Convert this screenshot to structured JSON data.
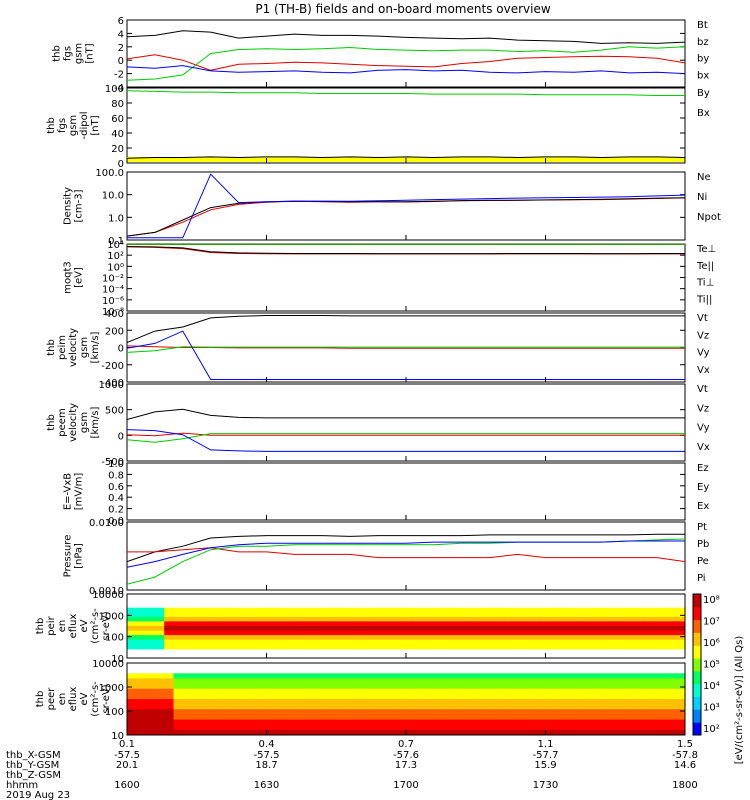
{
  "header": {
    "title": "P1 (TH-B) fields and on-board moments overview"
  },
  "palette": {
    "black": "#000000",
    "red": "#e00000",
    "green": "#00cc00",
    "blue": "#0000ff",
    "yellow": "#ffff00",
    "colorbar": [
      "#0000ff",
      "#0080ff",
      "#00d0ff",
      "#00ffd0",
      "#00ff60",
      "#80ff00",
      "#ffff00",
      "#ffc000",
      "#ff6000",
      "#ff0000",
      "#c00000"
    ]
  },
  "chart_data": [
    {
      "type": "line",
      "ylabel": [
        "thb",
        "fgs",
        "gsm",
        "[nT]"
      ],
      "yticks": [
        "6",
        "4",
        "2",
        "0",
        "-2",
        "-4"
      ],
      "ylim": [
        -4,
        6
      ],
      "series": [
        {
          "name": "Bt",
          "color": "black",
          "values": [
            3.5,
            3.7,
            4.4,
            4.2,
            3.3,
            3.6,
            3.9,
            3.7,
            3.7,
            3.6,
            3.4,
            3.3,
            3.2,
            3.3,
            3.0,
            2.9,
            2.8,
            2.5,
            2.6,
            2.5,
            2.7
          ]
        },
        {
          "name": "bz",
          "color": "red",
          "values": [
            0.2,
            0.8,
            0.0,
            -1.5,
            -0.6,
            -0.5,
            -0.3,
            -0.4,
            -0.6,
            -0.8,
            -0.9,
            -1.0,
            -0.5,
            -0.2,
            0.3,
            0.4,
            0.5,
            0.6,
            0.5,
            0.3,
            -0.4
          ]
        },
        {
          "name": "by",
          "color": "green",
          "values": [
            -3.0,
            -2.8,
            -2.2,
            1.0,
            1.6,
            1.7,
            1.6,
            1.7,
            1.9,
            1.6,
            1.5,
            1.4,
            1.5,
            1.5,
            1.3,
            1.4,
            1.2,
            1.5,
            2.0,
            1.8,
            2.0
          ]
        },
        {
          "name": "bx",
          "color": "blue",
          "values": [
            -1.0,
            -1.2,
            -0.8,
            -1.6,
            -1.8,
            -1.7,
            -1.6,
            -1.8,
            -1.9,
            -1.5,
            -1.4,
            -1.6,
            -1.5,
            -1.8,
            -1.9,
            -1.7,
            -1.8,
            -1.6,
            -1.9,
            -1.8,
            -2.0
          ]
        }
      ]
    },
    {
      "type": "line",
      "ylabel": [
        "thb",
        "fgs",
        "gsm",
        "-dipol",
        "[nT]"
      ],
      "yticks": [
        "100",
        "80",
        "60",
        "40",
        "20",
        "0"
      ],
      "ylim": [
        -10,
        100
      ],
      "series": [
        {
          "name": "By",
          "color": "green",
          "values": [
            96,
            95,
            94,
            94,
            93,
            93,
            93,
            92,
            92,
            92,
            92,
            91,
            91,
            91,
            91,
            90,
            90,
            90,
            90,
            89,
            89
          ]
        },
        {
          "name": "Bx",
          "color": "black",
          "values": [
            -3,
            -2,
            -2,
            -1,
            -2,
            -1,
            -1,
            -2,
            -1,
            -2,
            -1,
            -2,
            -1,
            -1,
            -2,
            -1,
            -1,
            -2,
            -1,
            -1,
            -2
          ]
        }
      ],
      "band": "yellow"
    },
    {
      "type": "line",
      "log": true,
      "ylabel": [
        "Density",
        "[cm-3]"
      ],
      "yticks": [
        "100.0",
        "10.0",
        "1.0",
        "0.1"
      ],
      "ylim": [
        0.03,
        200
      ],
      "series": [
        {
          "name": "Ne",
          "color": "red",
          "values": [
            0.05,
            0.08,
            0.3,
            1.5,
            3.0,
            4.0,
            4.5,
            4.3,
            4.0,
            4.2,
            4.1,
            4.4,
            4.8,
            5.0,
            5.1,
            5.3,
            5.5,
            5.6,
            6.0,
            6.5,
            7.0
          ]
        },
        {
          "name": "Ni",
          "color": "black",
          "values": [
            0.05,
            0.08,
            0.4,
            2.0,
            3.5,
            4.2,
            4.5,
            4.4,
            4.2,
            4.3,
            4.3,
            4.5,
            4.9,
            5.1,
            5.2,
            5.4,
            5.6,
            5.8,
            6.2,
            6.8,
            7.2
          ]
        },
        {
          "name": "Npot",
          "color": "blue",
          "values": [
            0.04,
            0.04,
            0.04,
            150,
            3.8,
            4.3,
            4.6,
            4.6,
            4.5,
            4.8,
            5.2,
            5.6,
            6.0,
            6.4,
            6.8,
            7.1,
            7.4,
            7.8,
            8.2,
            9.0,
            10.0
          ]
        }
      ]
    },
    {
      "type": "line",
      "log": true,
      "ylabel": [
        "moqt3",
        "[eV]"
      ],
      "yticks": [
        "10⁴",
        "10²",
        "10⁰",
        "10⁻²",
        "10⁻⁴",
        "10⁻⁶",
        "10⁻⁸"
      ],
      "ylim": [
        1e-08,
        10000.0
      ],
      "series": [
        {
          "name": "Te⊥",
          "color": "red",
          "values": [
            3000,
            2500,
            1500,
            300,
            200,
            180,
            170,
            170,
            170,
            160,
            160,
            160,
            160,
            160,
            170,
            170,
            170,
            160,
            160,
            170,
            170
          ]
        },
        {
          "name": "Te||",
          "color": "black",
          "values": [
            3500,
            3000,
            2000,
            400,
            250,
            220,
            200,
            200,
            200,
            190,
            190,
            190,
            190,
            190,
            200,
            200,
            200,
            190,
            190,
            200,
            200
          ]
        },
        {
          "name": "Ti⊥",
          "color": "red",
          "values": [
            8000,
            8000,
            8000,
            8000,
            8000,
            8000,
            8000,
            8000,
            8000,
            8000,
            8000,
            8000,
            8000,
            8000,
            8000,
            8000,
            8000,
            8000,
            8000,
            8000,
            8000
          ]
        },
        {
          "name": "Ti||",
          "color": "green",
          "values": [
            9000,
            9000,
            9000,
            9000,
            9000,
            9000,
            9000,
            9000,
            9000,
            9000,
            9000,
            9000,
            9000,
            9000,
            9000,
            9000,
            9000,
            9000,
            9000,
            9000,
            9000
          ]
        }
      ]
    },
    {
      "type": "line",
      "ylabel": [
        "thb",
        "peim",
        "velocity",
        "gsm",
        "[km/s]"
      ],
      "yticks": [
        "400",
        "200",
        "0",
        "-200",
        "-400"
      ],
      "ylim": [
        -420,
        420
      ],
      "series": [
        {
          "name": "Vt",
          "color": "black",
          "values": [
            60,
            200,
            250,
            360,
            380,
            390,
            390,
            390,
            385,
            385,
            385,
            385,
            385,
            385,
            385,
            385,
            385,
            385,
            385,
            385,
            385
          ]
        },
        {
          "name": "Vz",
          "color": "red",
          "values": [
            20,
            10,
            0,
            0,
            -5,
            -5,
            -5,
            -5,
            -8,
            -8,
            -8,
            -8,
            -8,
            -8,
            -8,
            -8,
            -8,
            -8,
            -8,
            -8,
            -8
          ]
        },
        {
          "name": "Vy",
          "color": "green",
          "values": [
            -60,
            -40,
            10,
            5,
            5,
            5,
            5,
            5,
            5,
            5,
            5,
            5,
            5,
            5,
            5,
            5,
            5,
            5,
            5,
            5,
            5
          ]
        },
        {
          "name": "Vx",
          "color": "blue",
          "values": [
            -10,
            50,
            200,
            -390,
            -390,
            -390,
            -390,
            -390,
            -390,
            -390,
            -390,
            -390,
            -390,
            -390,
            -390,
            -390,
            -390,
            -390,
            -390,
            -390,
            -390
          ]
        }
      ]
    },
    {
      "type": "line",
      "ylabel": [
        "thb",
        "peem",
        "velocity",
        "gsm",
        "[km/s]"
      ],
      "yticks": [
        "1000",
        "500",
        "0",
        "-500"
      ],
      "ylim": [
        -520,
        1000
      ],
      "series": [
        {
          "name": "Vt",
          "color": "black",
          "values": [
            300,
            450,
            500,
            380,
            340,
            330,
            330,
            330,
            330,
            330,
            330,
            330,
            330,
            330,
            330,
            330,
            330,
            330,
            330,
            330,
            330
          ]
        },
        {
          "name": "Vz",
          "color": "red",
          "values": [
            0,
            -20,
            30,
            -10,
            -10,
            -10,
            -10,
            -10,
            -10,
            -10,
            -10,
            -10,
            -10,
            -10,
            -10,
            -10,
            -10,
            -10,
            -10,
            -10,
            -10
          ]
        },
        {
          "name": "Vy",
          "color": "green",
          "values": [
            -100,
            -150,
            -80,
            20,
            20,
            20,
            20,
            20,
            20,
            20,
            20,
            20,
            20,
            20,
            20,
            20,
            20,
            20,
            20,
            20,
            20
          ]
        },
        {
          "name": "Vx",
          "color": "blue",
          "values": [
            100,
            80,
            0,
            -300,
            -320,
            -330,
            -330,
            -330,
            -330,
            -330,
            -330,
            -330,
            -330,
            -330,
            -330,
            -330,
            -330,
            -330,
            -330,
            -330,
            -330
          ]
        }
      ]
    },
    {
      "type": "line",
      "ylabel": [
        "E=-VxB",
        "[mV/m]"
      ],
      "yticks": [
        "1.0",
        "0.8",
        "0.6",
        "0.4",
        "0.2",
        "0.0"
      ],
      "ylim": [
        0,
        1
      ],
      "series": [
        {
          "name": "Ez",
          "color": "red",
          "values": []
        },
        {
          "name": "Ey",
          "color": "green",
          "values": []
        },
        {
          "name": "Ex",
          "color": "blue",
          "values": []
        }
      ]
    },
    {
      "type": "line",
      "log": true,
      "ylabel": [
        "Pressure",
        "[nPa]"
      ],
      "yticks": [
        "0.0100",
        "0.0010"
      ],
      "ylim": [
        0.0004,
        0.05
      ],
      "series": [
        {
          "name": "Pt",
          "color": "black",
          "values": [
            0.003,
            0.006,
            0.009,
            0.016,
            0.018,
            0.019,
            0.019,
            0.019,
            0.018,
            0.019,
            0.019,
            0.019,
            0.019,
            0.02,
            0.02,
            0.02,
            0.02,
            0.02,
            0.02,
            0.021,
            0.021
          ]
        },
        {
          "name": "Pb",
          "color": "red",
          "values": [
            0.006,
            0.006,
            0.007,
            0.008,
            0.006,
            0.006,
            0.005,
            0.005,
            0.005,
            0.004,
            0.004,
            0.004,
            0.004,
            0.004,
            0.005,
            0.004,
            0.004,
            0.004,
            0.004,
            0.004,
            0.003
          ]
        },
        {
          "name": "Pe",
          "color": "green",
          "values": [
            0.0006,
            0.001,
            0.003,
            0.007,
            0.009,
            0.009,
            0.01,
            0.01,
            0.01,
            0.01,
            0.01,
            0.01,
            0.011,
            0.011,
            0.012,
            0.012,
            0.012,
            0.012,
            0.013,
            0.014,
            0.015
          ]
        },
        {
          "name": "Pi",
          "color": "blue",
          "values": [
            0.002,
            0.003,
            0.005,
            0.008,
            0.01,
            0.011,
            0.011,
            0.011,
            0.011,
            0.011,
            0.011,
            0.012,
            0.012,
            0.012,
            0.012,
            0.012,
            0.012,
            0.012,
            0.013,
            0.013,
            0.013
          ]
        }
      ]
    },
    {
      "type": "heatmap",
      "ylabel": [
        "thb",
        "peir",
        "en",
        "eflux",
        "eV",
        "(cm²-s-",
        "sr-eV)"
      ],
      "yticks": [
        "10000",
        "1000",
        "100",
        "10"
      ],
      "ylim": [
        5,
        20000
      ]
    },
    {
      "type": "heatmap",
      "ylabel": [
        "thb",
        "peer",
        "en",
        "eflux",
        "eV",
        "(cm²-s-",
        "sr-eV)"
      ],
      "yticks": [
        "10000",
        "1000",
        "100",
        "10"
      ],
      "ylim": [
        5,
        20000
      ]
    }
  ],
  "colorbar": {
    "ticks": [
      "10⁸",
      "10⁷",
      "10⁶",
      "10⁵",
      "10⁴",
      "10³",
      "10²"
    ],
    "label": "[eV/(cm²-s-sr-eV)] (All Qs)"
  },
  "time_axis": {
    "x_ticks": [
      "0.1",
      "0.4",
      "0.7",
      "1.1",
      "1.5"
    ],
    "rows": [
      {
        "label": "thb_X-GSM",
        "values": [
          "-57.5",
          "-57.5",
          "-57.6",
          "-57.7",
          "-57.8"
        ]
      },
      {
        "label": "thb_Y-GSM",
        "values": [
          "20.1",
          "18.7",
          "17.3",
          "15.9",
          "14.6"
        ]
      },
      {
        "label": "thb_Z-GSM",
        "values": [
          "",
          "",
          "",
          "",
          ""
        ]
      },
      {
        "label": "hhmm",
        "values": [
          "1600",
          "1630",
          "1700",
          "1730",
          "1800"
        ]
      }
    ],
    "date": "2019 Aug 23"
  }
}
